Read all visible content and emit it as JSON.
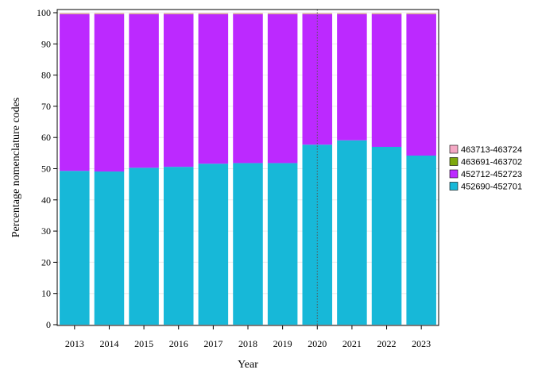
{
  "chart_data": {
    "type": "bar",
    "stacked": true,
    "categories": [
      "2013",
      "2014",
      "2015",
      "2016",
      "2017",
      "2018",
      "2019",
      "2020",
      "2021",
      "2022",
      "2023"
    ],
    "series": [
      {
        "name": "452690-452701",
        "color": "#17b8d8",
        "values": [
          49.3,
          49.1,
          50.3,
          50.6,
          51.6,
          51.8,
          51.8,
          57.7,
          59.1,
          57.0,
          54.2
        ]
      },
      {
        "name": "452712-452723",
        "color": "#bc29ff",
        "values": [
          50.2,
          50.4,
          49.2,
          48.9,
          47.9,
          47.7,
          47.7,
          41.8,
          40.4,
          42.5,
          45.3
        ]
      },
      {
        "name": "463691-463702",
        "color": "#7ea80d",
        "values": [
          0.1,
          0.1,
          0.1,
          0.1,
          0.1,
          0.1,
          0.1,
          0.1,
          0.1,
          0.1,
          0.1
        ]
      },
      {
        "name": "463713-463724",
        "color": "#f4a8c4",
        "values": [
          0.3,
          0.3,
          0.3,
          0.3,
          0.3,
          0.3,
          0.3,
          0.3,
          0.3,
          0.3,
          0.3
        ]
      }
    ],
    "xlabel": "Year",
    "ylabel": "Percentage nomenclature codes",
    "ylim": [
      0,
      100
    ],
    "yticks": [
      0,
      10,
      20,
      30,
      40,
      50,
      60,
      70,
      80,
      90,
      100
    ],
    "reference_line_x": "2020",
    "grid": true,
    "legend_position": "right"
  }
}
